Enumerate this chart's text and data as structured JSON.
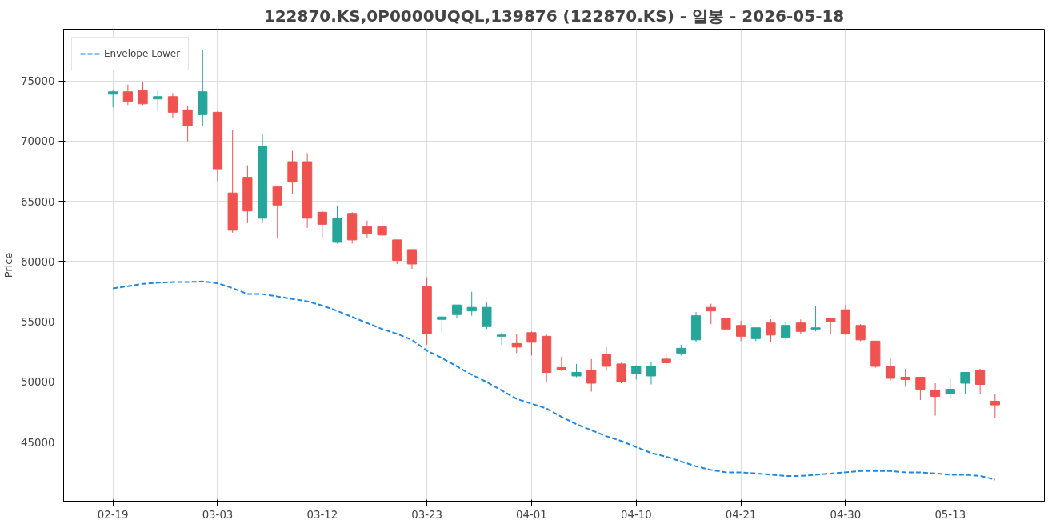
{
  "chart_data": {
    "type": "candlestick",
    "title": "122870.KS,0P0000UQQL,139876 (122870.KS) - 일봉 - 2026-05-18",
    "ylabel": "Price",
    "categories": [
      "02-19",
      null,
      null,
      null,
      null,
      null,
      null,
      "03-03",
      null,
      null,
      null,
      null,
      null,
      null,
      "03-12",
      null,
      null,
      null,
      null,
      null,
      null,
      "03-23",
      null,
      null,
      null,
      null,
      null,
      null,
      "04-01",
      null,
      null,
      null,
      null,
      null,
      null,
      "04-10",
      null,
      null,
      null,
      null,
      null,
      null,
      "04-21",
      null,
      null,
      null,
      null,
      null,
      null,
      "04-30",
      null,
      null,
      null,
      null,
      null,
      null,
      "05-13",
      null,
      null,
      null
    ],
    "ohlc": [
      [
        73900,
        74300,
        72800,
        74100
      ],
      [
        74100,
        74700,
        73000,
        73300
      ],
      [
        74200,
        74900,
        73000,
        73100
      ],
      [
        73500,
        74200,
        72500,
        73700
      ],
      [
        73700,
        74000,
        71900,
        72400
      ],
      [
        72600,
        72900,
        70000,
        71300
      ],
      [
        72200,
        77600,
        71300,
        74100
      ],
      [
        72400,
        72500,
        66700,
        67700
      ],
      [
        65700,
        70900,
        62400,
        62600
      ],
      [
        67000,
        68000,
        63200,
        64200
      ],
      [
        63600,
        70600,
        63200,
        69600
      ],
      [
        66200,
        66200,
        62000,
        64700
      ],
      [
        68300,
        69200,
        65600,
        66600
      ],
      [
        68300,
        69000,
        62800,
        63600
      ],
      [
        64100,
        64200,
        62000,
        63100
      ],
      [
        61600,
        64600,
        61500,
        63600
      ],
      [
        64000,
        64100,
        61500,
        61800
      ],
      [
        62900,
        63400,
        62000,
        62300
      ],
      [
        62900,
        63800,
        61700,
        62200
      ],
      [
        61800,
        61800,
        59800,
        60100
      ],
      [
        61000,
        61000,
        59400,
        59800
      ],
      [
        57900,
        58700,
        53100,
        54000
      ],
      [
        55200,
        55500,
        54100,
        55400
      ],
      [
        55600,
        56400,
        55300,
        56400
      ],
      [
        55900,
        57500,
        55500,
        56200
      ],
      [
        54600,
        56600,
        54400,
        56200
      ],
      [
        53800,
        54100,
        53100,
        53900
      ],
      [
        53200,
        54000,
        52400,
        52900
      ],
      [
        54100,
        54200,
        52200,
        53300
      ],
      [
        53800,
        54000,
        50000,
        50800
      ],
      [
        51200,
        52100,
        50900,
        51000
      ],
      [
        50500,
        51500,
        50400,
        50800
      ],
      [
        51000,
        51900,
        49200,
        49900
      ],
      [
        52300,
        52900,
        50900,
        51300
      ],
      [
        51500,
        51600,
        49900,
        50000
      ],
      [
        50700,
        51400,
        50200,
        51300
      ],
      [
        50500,
        51700,
        49800,
        51300
      ],
      [
        51900,
        52400,
        51400,
        51600
      ],
      [
        52400,
        53100,
        52200,
        52800
      ],
      [
        53500,
        55800,
        53300,
        55500
      ],
      [
        56200,
        56500,
        54800,
        55900
      ],
      [
        55300,
        55500,
        54200,
        54400
      ],
      [
        54700,
        55100,
        53400,
        53800
      ],
      [
        53600,
        54500,
        53400,
        54500
      ],
      [
        54900,
        55200,
        53300,
        53900
      ],
      [
        53700,
        55000,
        53500,
        54700
      ],
      [
        54900,
        55200,
        54000,
        54200
      ],
      [
        54400,
        56300,
        54200,
        54500
      ],
      [
        55300,
        55300,
        54000,
        55000
      ],
      [
        56000,
        56400,
        53900,
        54000
      ],
      [
        54700,
        54800,
        53400,
        53500
      ],
      [
        53400,
        53400,
        51200,
        51300
      ],
      [
        51300,
        52000,
        50100,
        50300
      ],
      [
        50400,
        51100,
        49600,
        50200
      ],
      [
        50400,
        50400,
        48500,
        49400
      ],
      [
        49300,
        49900,
        47200,
        48800
      ],
      [
        49000,
        50300,
        48600,
        49400
      ],
      [
        49900,
        50800,
        49000,
        50800
      ],
      [
        51000,
        51100,
        49000,
        49800
      ],
      [
        48400,
        49000,
        47000,
        48100
      ]
    ],
    "colors": [
      "#26a69a",
      "#ef5350",
      "#ef5350",
      "#26a69a",
      "#ef5350",
      "#ef5350",
      "#26a69a",
      "#ef5350",
      "#ef5350",
      "#ef5350",
      "#26a69a",
      "#ef5350",
      "#ef5350",
      "#ef5350",
      "#ef5350",
      "#26a69a",
      "#ef5350",
      "#ef5350",
      "#ef5350",
      "#ef5350",
      "#ef5350",
      "#ef5350",
      "#26a69a",
      "#26a69a",
      "#26a69a",
      "#26a69a",
      "#26a69a",
      "#ef5350",
      "#ef5350",
      "#ef5350",
      "#ef5350",
      "#26a69a",
      "#ef5350",
      "#ef5350",
      "#ef5350",
      "#26a69a",
      "#26a69a",
      "#ef5350",
      "#26a69a",
      "#26a69a",
      "#ef5350",
      "#ef5350",
      "#ef5350",
      "#26a69a",
      "#ef5350",
      "#26a69a",
      "#ef5350",
      "#26a69a",
      "#ef5350",
      "#ef5350",
      "#ef5350",
      "#ef5350",
      "#ef5350",
      "#ef5350",
      "#ef5350",
      "#ef5350",
      "#26a69a",
      "#26a69a",
      "#ef5350",
      "#ef5350"
    ],
    "series": [
      {
        "name": "Envelope Lower",
        "type": "line",
        "color": "#1e88e5",
        "line_style": "dashed",
        "values": [
          57780,
          57950,
          58150,
          58250,
          58300,
          58300,
          58350,
          58200,
          57800,
          57300,
          57300,
          57100,
          56900,
          56700,
          56350,
          55900,
          55400,
          54900,
          54400,
          54000,
          53500,
          52600,
          52000,
          51300,
          50600,
          50000,
          49300,
          48600,
          48200,
          47800,
          47100,
          46500,
          46000,
          45500,
          45100,
          44600,
          44100,
          43800,
          43400,
          43000,
          42700,
          42500,
          42500,
          42400,
          42300,
          42200,
          42200,
          42300,
          42400,
          42500,
          42600,
          42600,
          42600,
          42500,
          42500,
          42400,
          42300,
          42300,
          42200,
          41900
        ]
      }
    ],
    "ylim": [
      40100,
      79300
    ],
    "yticks": [
      45000,
      50000,
      55000,
      60000,
      65000,
      70000,
      75000
    ],
    "grid": true,
    "legend": "top left"
  }
}
